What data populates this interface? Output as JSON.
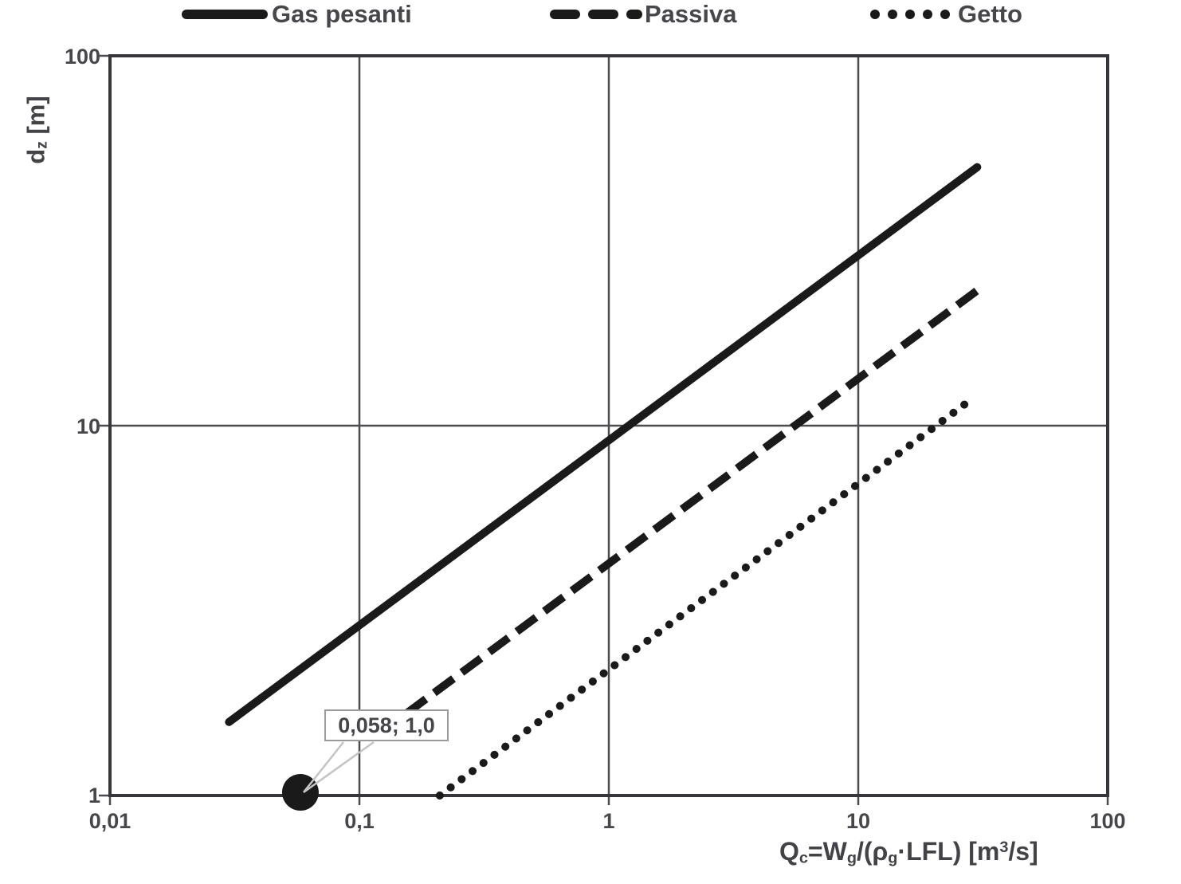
{
  "chart_data": {
    "type": "line",
    "title": "",
    "grid": true,
    "legend_position": "top",
    "line_color": "#1a1a1a",
    "x_axis": {
      "label": "Qc=Wg/(pg·LFL) [m3/s]",
      "scale": "log",
      "min": 0.01,
      "max": 100,
      "ticks": [
        "0,01",
        "0,1",
        "1",
        "10",
        "100"
      ],
      "tick_values": [
        0.01,
        0.1,
        1,
        10,
        100
      ],
      "title_segments": [
        {
          "t": "Q"
        },
        {
          "t": "c",
          "sub": true
        },
        {
          "t": "=W"
        },
        {
          "t": "g",
          "sub": true
        },
        {
          "t": "/("
        },
        {
          "t": "ρ"
        },
        {
          "t": "g",
          "sub": true
        },
        {
          "t": "·LFL) [m"
        },
        {
          "t": "3",
          "sup": true
        },
        {
          "t": "/s]"
        }
      ]
    },
    "y_axis": {
      "label": "dz [m]",
      "scale": "log",
      "min": 1,
      "max": 100,
      "ticks": [
        "1",
        "10",
        "100"
      ],
      "tick_values": [
        1,
        10,
        100
      ],
      "title_segments": [
        {
          "t": "d"
        },
        {
          "t": "z",
          "sub": true
        },
        {
          "t": " [m]"
        }
      ]
    },
    "series": [
      {
        "name": "Gas pesanti",
        "style": "solid",
        "points": [
          [
            0.03,
            1.58
          ],
          [
            30,
            50
          ]
        ]
      },
      {
        "name": "Passiva",
        "style": "dashed",
        "points": [
          [
            0.12,
            1.47
          ],
          [
            30,
            23.2
          ]
        ]
      },
      {
        "name": "Getto",
        "style": "dotted",
        "points": [
          [
            0.21,
            1.0
          ],
          [
            29,
            11.9
          ]
        ]
      }
    ],
    "annotation": {
      "label": "0,058; 1,0",
      "x": 0.058,
      "y": 1.0
    }
  }
}
